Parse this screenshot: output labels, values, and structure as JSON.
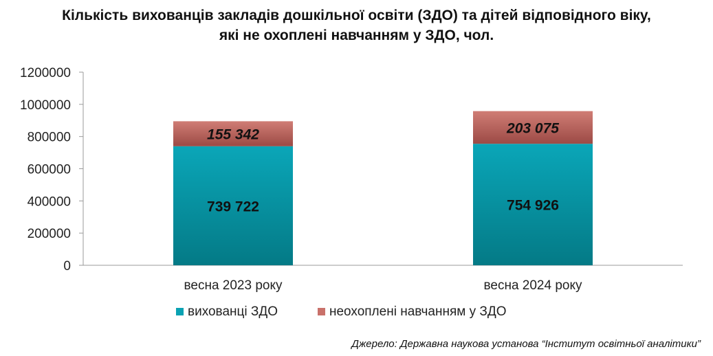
{
  "chart_data": {
    "type": "bar",
    "stacked": true,
    "title_lines": [
      "Кількість вихованців закладів дошкільної освіти (ЗДО) та дітей відповідного віку,",
      "які не охоплені навчанням у ЗДО, чол."
    ],
    "categories": [
      "весна 2023 року",
      "весна 2024 року"
    ],
    "series": [
      {
        "name": "вихованці ЗДО",
        "values": [
          739722,
          754926
        ],
        "labels": [
          "739 722",
          "754 926"
        ],
        "color": "#0aa2b3"
      },
      {
        "name": "неохоплені навчанням у ЗДО",
        "values": [
          155342,
          203075
        ],
        "labels": [
          "155 342",
          "203 075"
        ],
        "color": "#c9716a"
      }
    ],
    "yticks": [
      "0",
      "200000",
      "400000",
      "600000",
      "800000",
      "1000000",
      "1200000"
    ],
    "ylim": [
      0,
      1200000
    ],
    "legend_position": "bottom",
    "grid": false
  },
  "source_note": "Джерело: Державна наукова установа “Інститут освітньої аналітики”"
}
